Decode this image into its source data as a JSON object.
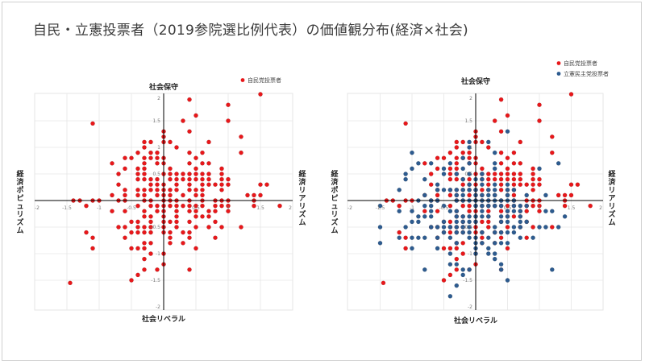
{
  "title": "自民・立憲投票者（2019参院選比例代表）の価値観分布(経済×社会)",
  "colors": {
    "ldp": "#e8171a",
    "cdp": "#2d5b8f",
    "axis": "#000000",
    "grid": "#e6e6e6"
  },
  "chart_data": [
    {
      "type": "scatter",
      "title": "",
      "xlabel_left": "経済ポピュリズム",
      "xlabel_right": "経済リアリズム",
      "ylabel_top": "社会保守",
      "ylabel_bottom": "社会リベラル",
      "xlim": [
        -2,
        2
      ],
      "ylim": [
        -2,
        2
      ],
      "xticks": [
        "-2",
        "-1.5",
        "-1",
        "-0.5",
        "0.5",
        "1",
        "1.5",
        "2"
      ],
      "yticks": [
        "2",
        "1.5",
        "1",
        "0.5",
        "-0.5",
        "-1",
        "-1.5",
        "-2"
      ],
      "grid": true,
      "legend_position": "top-right",
      "series": [
        {
          "name": "自民党投票者",
          "color_key": "ldp",
          "spacing": 0.1,
          "points": []
        }
      ]
    },
    {
      "type": "scatter",
      "title": "",
      "xlabel_left": "経済ポピュリズム",
      "xlabel_right": "経済リアリズム",
      "ylabel_top": "社会保守",
      "ylabel_bottom": "社会リベラル",
      "xlim": [
        -2,
        2
      ],
      "ylim": [
        -2,
        2
      ],
      "xticks": [
        "-2",
        "-1.5",
        "-1",
        "-0.5",
        "0.5",
        "1",
        "1.5",
        "2"
      ],
      "yticks": [
        "2",
        "1.5",
        "1",
        "0.5",
        "-0.5",
        "-1",
        "-1.5",
        "-2"
      ],
      "grid": true,
      "legend_position": "top-right",
      "series": [
        {
          "name": "自民党投票者",
          "color_key": "ldp",
          "spacing": 0.1,
          "points": []
        },
        {
          "name": "立憲民主党投票者",
          "color_key": "cdp",
          "spacing": 0.1,
          "points": []
        }
      ]
    }
  ]
}
